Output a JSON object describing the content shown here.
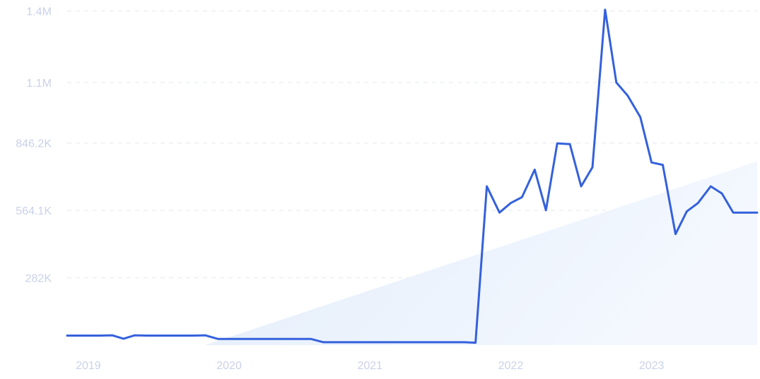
{
  "chart_data": {
    "type": "line",
    "title": "",
    "xlabel": "",
    "ylabel": "",
    "y_ticks": [
      {
        "value": 282000,
        "label": "282K"
      },
      {
        "value": 564100,
        "label": "564.1K"
      },
      {
        "value": 846200,
        "label": "846.2K"
      },
      {
        "value": 1100000,
        "label": "1.1M"
      },
      {
        "value": 1400000,
        "label": "1.4M"
      }
    ],
    "x_ticks": [
      {
        "value": 2019.0,
        "label": "2019"
      },
      {
        "value": 2020.0,
        "label": "2020"
      },
      {
        "value": 2021.0,
        "label": "2021"
      },
      {
        "value": 2022.0,
        "label": "2022"
      },
      {
        "value": 2023.0,
        "label": "2023"
      }
    ],
    "xlim": [
      2018.85,
      2023.75
    ],
    "ylim": [
      0,
      1410000
    ],
    "grid": true,
    "line_color": "#3461dc",
    "trend_fill_color": "#e8f0fc",
    "trend": {
      "x": [
        2019.83,
        2023.75
      ],
      "y": [
        0,
        770000
      ]
    },
    "series": [
      {
        "x": [
          2018.85,
          2018.93,
          2019.0,
          2019.08,
          2019.17,
          2019.25,
          2019.33,
          2019.42,
          2019.5,
          2019.58,
          2019.67,
          2019.75,
          2019.83,
          2019.92,
          2020.0,
          2020.08,
          2020.17,
          2020.25,
          2020.33,
          2020.42,
          2020.5,
          2020.58,
          2020.67,
          2020.75,
          2020.83,
          2020.92,
          2021.0,
          2021.08,
          2021.17,
          2021.25,
          2021.33,
          2021.42,
          2021.5,
          2021.58,
          2021.67,
          2021.75,
          2021.83,
          2021.92,
          2022.0,
          2022.08,
          2022.17,
          2022.25,
          2022.33,
          2022.42,
          2022.5,
          2022.58,
          2022.67,
          2022.75,
          2022.83,
          2022.92,
          2023.0,
          2023.08,
          2023.17,
          2023.25,
          2023.33,
          2023.42,
          2023.5,
          2023.58,
          2023.67,
          2023.75
        ],
        "y": [
          40000,
          40000,
          40000,
          40000,
          41000,
          27000,
          41000,
          40000,
          40000,
          40000,
          40000,
          40000,
          41000,
          26000,
          26000,
          26000,
          26000,
          26000,
          26000,
          26000,
          26000,
          26000,
          12000,
          12000,
          12000,
          12000,
          12000,
          12000,
          12000,
          12000,
          12000,
          12000,
          12000,
          12000,
          12000,
          10000,
          665000,
          555000,
          595000,
          620000,
          735000,
          565000,
          845000,
          842000,
          665000,
          745000,
          1405000,
          1100000,
          1045000,
          955000,
          765000,
          755000,
          465000,
          560000,
          595000,
          665000,
          635000,
          555000,
          555000,
          555000
        ]
      }
    ]
  }
}
